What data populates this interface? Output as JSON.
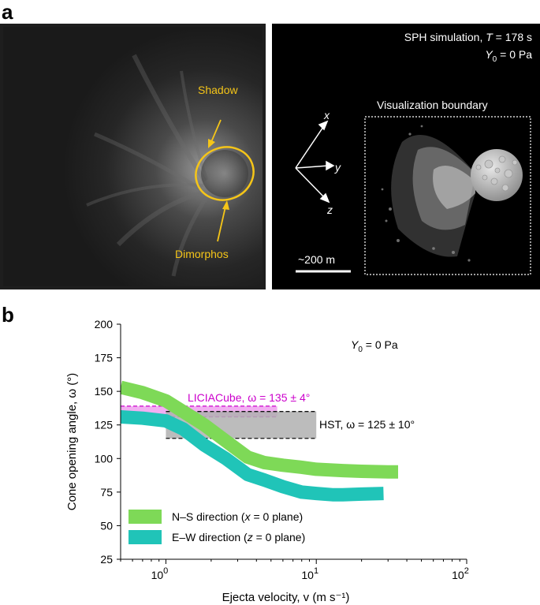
{
  "panel_a": {
    "letter": "a",
    "left_image": {
      "labels": {
        "shadow": "Shadow",
        "dimorphos": "Dimorphos"
      },
      "annotation_color": "#f5c518"
    },
    "right_image": {
      "title_prefix": "SPH simulation, ",
      "title_var": "T",
      "title_suffix": " = 178 s",
      "y0_main": "Y",
      "y0_sub": "0",
      "y0_rest": " = 0 Pa",
      "axis_x": "x",
      "axis_y": "y",
      "axis_z": "z",
      "boundary_label": "Visualization boundary",
      "scale_label": "~200 m"
    }
  },
  "panel_b": {
    "letter": "b",
    "annotation_y0_main": "Y",
    "annotation_y0_sub": "0",
    "annotation_y0_rest": " = 0 Pa",
    "liciacube_label": "LICIACube, ω = 135 ± 4°",
    "hst_label": "HST, ω = 125 ± 10°",
    "legend": [
      {
        "pre": "N–S direction (",
        "var": "x",
        "post": " = 0 plane)",
        "color": "#7ed957"
      },
      {
        "pre": "E–W direction (",
        "var": "z",
        "post": " = 0 plane)",
        "color": "#20c4b8"
      }
    ]
  },
  "chart_data": {
    "type": "line",
    "xlabel": "Ejecta velocity, v (m s⁻¹)",
    "ylabel": "Cone opening angle, ω (°)",
    "xscale": "log",
    "xlim": [
      0.5,
      100
    ],
    "ylim": [
      25,
      200
    ],
    "y_ticks": [
      "200",
      "175",
      "150",
      "125",
      "100",
      "75",
      "50",
      "25"
    ],
    "x_ticks": [
      {
        "base": "10",
        "exp": "0",
        "value": 1
      },
      {
        "base": "10",
        "exp": "1",
        "value": 10
      },
      {
        "base": "10",
        "exp": "2",
        "value": 100
      }
    ],
    "series": [
      {
        "name": "N–S direction (x = 0 plane)",
        "color": "#7ed957",
        "x": [
          0.5,
          0.7,
          1.0,
          1.3,
          1.8,
          2.5,
          3.5,
          4.5,
          6.0,
          8.0,
          10,
          15,
          20,
          30,
          35
        ],
        "y": [
          153,
          149,
          143,
          135,
          125,
          113,
          101,
          97,
          95,
          93.5,
          92,
          91,
          90.5,
          90,
          90
        ]
      },
      {
        "name": "E–W direction (z = 0 plane)",
        "color": "#20c4b8",
        "x": [
          0.5,
          0.7,
          1.0,
          1.3,
          1.8,
          2.5,
          3.5,
          4.5,
          6.0,
          8.0,
          10,
          13,
          15,
          20,
          28
        ],
        "y": [
          131,
          130,
          128,
          122,
          110,
          100,
          88,
          84,
          79,
          75,
          74,
          73,
          73,
          73.5,
          74
        ]
      }
    ],
    "observations": [
      {
        "name": "LICIACube",
        "center": 135,
        "min": 131,
        "max": 139,
        "x_range": [
          0.5,
          5.5
        ],
        "fill": "#f0a0f0",
        "line": "#cc00cc"
      },
      {
        "name": "HST",
        "center": 125,
        "min": 115,
        "max": 135,
        "x_range": [
          1.0,
          10.0
        ],
        "fill": "#b0b0b0",
        "line": "#111111"
      }
    ]
  }
}
